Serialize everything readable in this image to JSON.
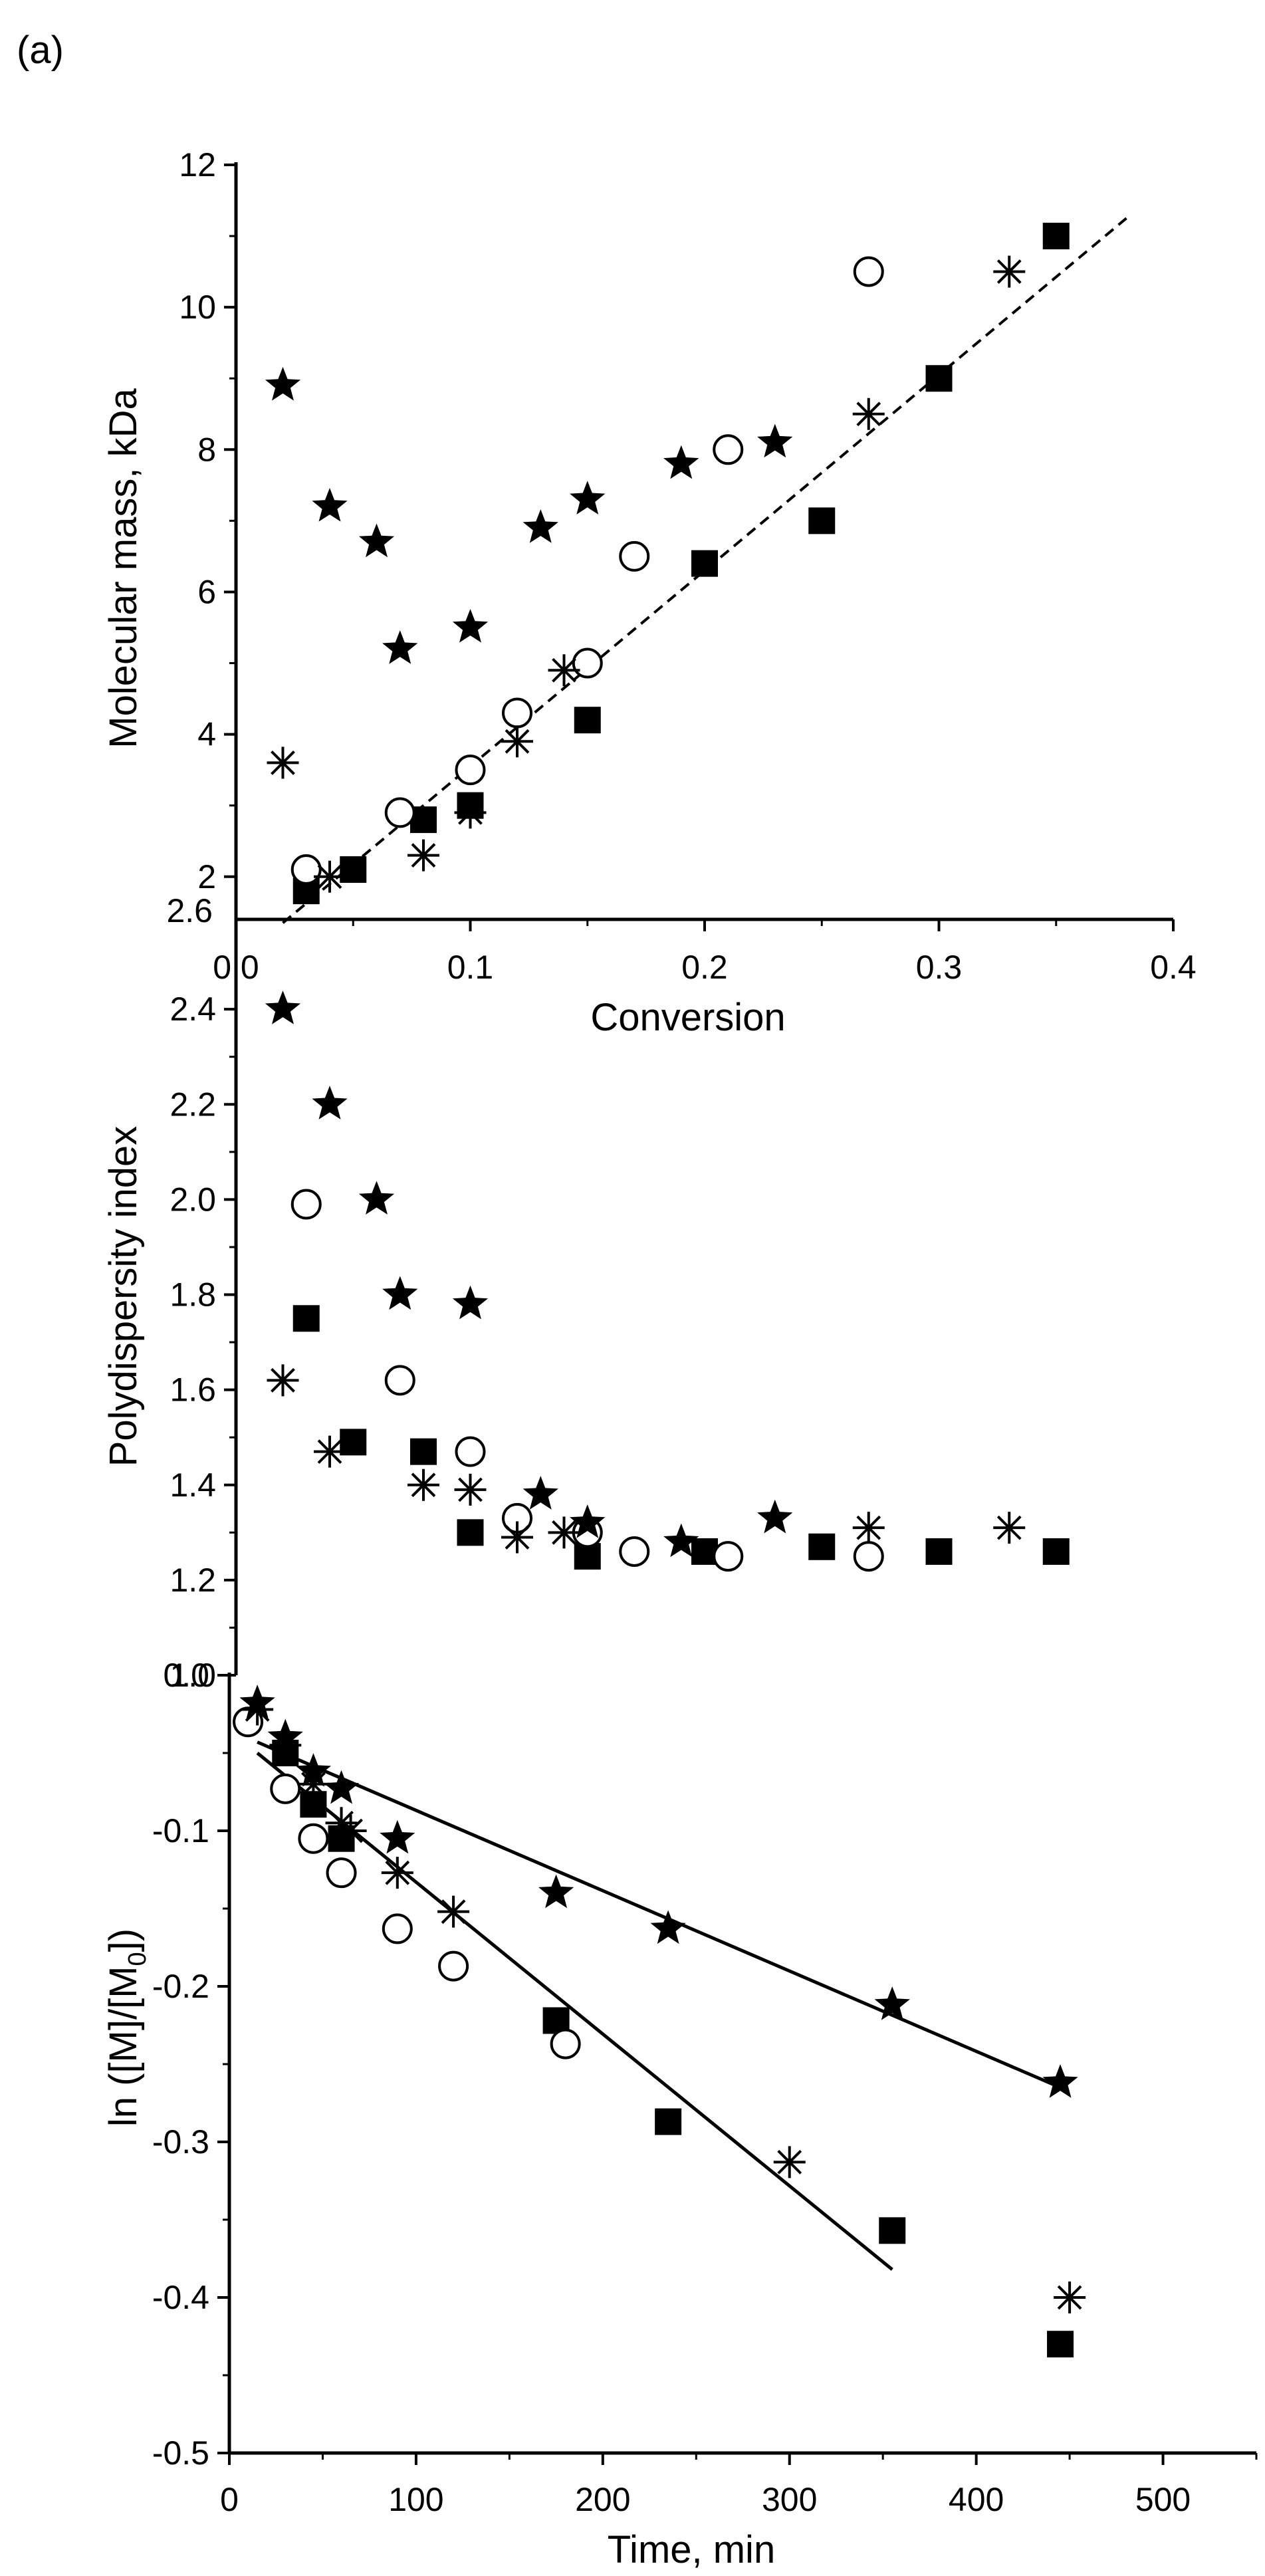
{
  "figure": {
    "panel_label": "(a)"
  },
  "chart_data": [
    {
      "type": "scatter",
      "id": "mw",
      "title": "",
      "xlabel": "Conversion",
      "ylabel": "Molecular mass, kDa",
      "xlim": [
        0,
        0.4
      ],
      "ylim": [
        1.4,
        12
      ],
      "x_ticks": [
        "0.0",
        "0.1",
        "0.2",
        "0.3",
        "0.4"
      ],
      "y_ticks": [
        "2",
        "4",
        "6",
        "8",
        "10",
        "12"
      ],
      "extra_y_label": "2.6",
      "grid": false,
      "series": [
        {
          "name": "squares",
          "marker": "square",
          "x": [
            0.03,
            0.05,
            0.08,
            0.1,
            0.15,
            0.2,
            0.25,
            0.3,
            0.35
          ],
          "y": [
            1.8,
            2.1,
            2.8,
            3.0,
            4.2,
            6.4,
            7.0,
            9.0,
            11.0
          ]
        },
        {
          "name": "circles",
          "marker": "circle",
          "x": [
            0.03,
            0.07,
            0.1,
            0.12,
            0.15,
            0.17,
            0.21,
            0.27
          ],
          "y": [
            2.1,
            2.9,
            3.5,
            4.3,
            5.0,
            6.5,
            8.0,
            10.5
          ]
        },
        {
          "name": "asterisks",
          "marker": "asterisk",
          "x": [
            0.02,
            0.04,
            0.08,
            0.1,
            0.12,
            0.14,
            0.27,
            0.33
          ],
          "y": [
            3.6,
            2.0,
            2.3,
            2.9,
            3.9,
            4.9,
            8.5,
            10.5
          ]
        },
        {
          "name": "stars",
          "marker": "star",
          "x": [
            0.02,
            0.04,
            0.06,
            0.07,
            0.1,
            0.13,
            0.15,
            0.19,
            0.23
          ],
          "y": [
            8.9,
            7.2,
            6.7,
            5.2,
            5.5,
            6.9,
            7.3,
            7.8,
            8.1
          ]
        }
      ],
      "fit_lines": [
        {
          "style": "dashed",
          "x": [
            0.02,
            0.38
          ],
          "y": [
            1.35,
            11.25
          ]
        }
      ]
    },
    {
      "type": "scatter",
      "id": "pdi",
      "title": "",
      "xlabel": "",
      "ylabel": "Polydispersity index",
      "xlim": [
        0,
        0.4
      ],
      "ylim": [
        1.0,
        2.6
      ],
      "y_ticks": [
        "1.0",
        "1.2",
        "1.4",
        "1.6",
        "1.8",
        "2.0",
        "2.2",
        "2.4"
      ],
      "grid": false,
      "series": [
        {
          "name": "squares",
          "marker": "square",
          "x": [
            0.03,
            0.05,
            0.08,
            0.1,
            0.15,
            0.2,
            0.25,
            0.3,
            0.35
          ],
          "y": [
            1.75,
            1.49,
            1.47,
            1.3,
            1.25,
            1.26,
            1.27,
            1.26,
            1.26
          ]
        },
        {
          "name": "circles",
          "marker": "circle",
          "x": [
            0.03,
            0.07,
            0.1,
            0.12,
            0.15,
            0.17,
            0.21,
            0.27
          ],
          "y": [
            1.99,
            1.62,
            1.47,
            1.33,
            1.3,
            1.26,
            1.25,
            1.25
          ]
        },
        {
          "name": "asterisks",
          "marker": "asterisk",
          "x": [
            0.02,
            0.04,
            0.08,
            0.1,
            0.12,
            0.14,
            0.27,
            0.33
          ],
          "y": [
            1.62,
            1.47,
            1.4,
            1.39,
            1.29,
            1.3,
            1.31,
            1.31
          ]
        },
        {
          "name": "stars",
          "marker": "star",
          "x": [
            0.02,
            0.04,
            0.06,
            0.07,
            0.1,
            0.13,
            0.15,
            0.19,
            0.23
          ],
          "y": [
            2.4,
            2.2,
            2.0,
            1.8,
            1.78,
            1.38,
            1.32,
            1.28,
            1.33
          ]
        }
      ]
    },
    {
      "type": "scatter",
      "id": "kinetics",
      "title": "",
      "xlabel": "Time, min",
      "ylabel_main": "ln ([M]/[M",
      "ylabel_sub": "0",
      "ylabel_tail": "])",
      "xlim": [
        0,
        550
      ],
      "ylim": [
        -0.5,
        0.0
      ],
      "x_ticks": [
        "0",
        "100",
        "200",
        "300",
        "400",
        "500"
      ],
      "y_ticks": [
        "-0.5",
        "-0.4",
        "-0.3",
        "-0.2",
        "-0.1",
        "0.0"
      ],
      "grid": false,
      "series": [
        {
          "name": "squares",
          "marker": "square",
          "x": [
            30,
            45,
            60,
            175,
            235,
            355,
            445
          ],
          "y": [
            -0.05,
            -0.083,
            -0.105,
            -0.222,
            -0.287,
            -0.357,
            -0.43
          ]
        },
        {
          "name": "circles",
          "marker": "circle",
          "x": [
            10,
            30,
            45,
            60,
            90,
            120,
            180
          ],
          "y": [
            -0.03,
            -0.073,
            -0.105,
            -0.127,
            -0.163,
            -0.187,
            -0.237
          ]
        },
        {
          "name": "asterisks",
          "marker": "asterisk",
          "x": [
            15,
            30,
            45,
            60,
            65,
            90,
            120,
            300,
            450
          ],
          "y": [
            -0.022,
            -0.045,
            -0.07,
            -0.095,
            -0.1,
            -0.127,
            -0.152,
            -0.313,
            -0.4
          ]
        },
        {
          "name": "stars",
          "marker": "star",
          "x": [
            15,
            30,
            45,
            60,
            90,
            175,
            235,
            355,
            445
          ],
          "y": [
            -0.018,
            -0.04,
            -0.062,
            -0.073,
            -0.105,
            -0.14,
            -0.163,
            -0.212,
            -0.262
          ]
        }
      ],
      "fit_lines": [
        {
          "style": "solid",
          "x": [
            15,
            445
          ],
          "y": [
            -0.043,
            -0.265
          ]
        },
        {
          "style": "solid",
          "x": [
            15,
            355
          ],
          "y": [
            -0.05,
            -0.382
          ]
        }
      ]
    }
  ]
}
